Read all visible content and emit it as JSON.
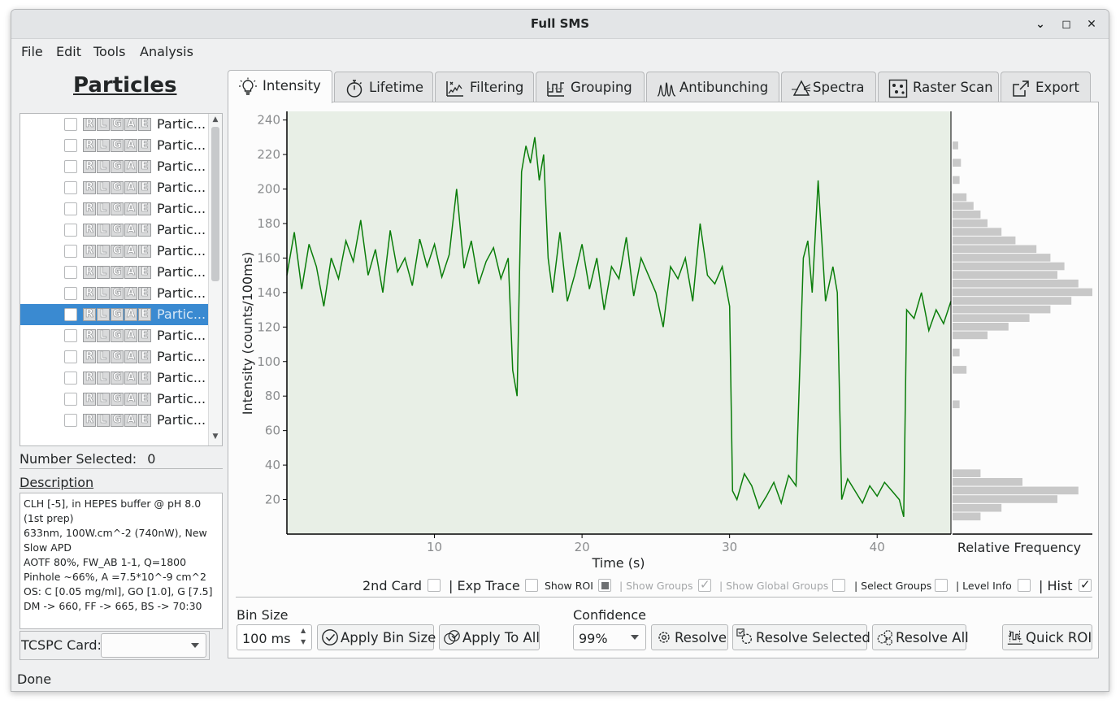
{
  "window": {
    "title": "Full SMS",
    "minimize_icon": "minimize-icon",
    "maximize_icon": "maximize-icon",
    "close_icon": "close-icon"
  },
  "menu": [
    "File",
    "Edit",
    "Tools",
    "Analysis"
  ],
  "left": {
    "title": "Particles",
    "tag_letters": [
      "R",
      "L",
      "G",
      "A",
      "E"
    ],
    "particle_label": "Partic...",
    "particle_count_visible": 15,
    "selected_index": 9,
    "number_selected_label": "Number Selected:",
    "number_selected_value": "0",
    "description_label": "Description",
    "description_lines": [
      "CLH [-5], in HEPES buffer @ pH 8.0 (1st prep)",
      "633nm, 100W.cm^-2 (740nW), New Slow APD",
      "AOTF 80%, FW_AB 1-1, Q=1800",
      "Pinhole ~66%, A =7.5*10^-9 cm^2",
      "OS: C [0.05 mg/ml], GO [1.0], G [7.5]",
      "DM -> 660, FF -> 665, BS -> 70:30"
    ],
    "tcspc_label": "TCSPC Card:",
    "tcspc_value": ""
  },
  "tabs": [
    {
      "label": "Intensity",
      "icon": "lightbulb-icon",
      "active": true
    },
    {
      "label": "Lifetime",
      "icon": "stopwatch-icon"
    },
    {
      "label": "Filtering",
      "icon": "filter-icon"
    },
    {
      "label": "Grouping",
      "icon": "grouping-icon"
    },
    {
      "label": "Antibunching",
      "icon": "antibunching-icon"
    },
    {
      "label": "Spectra",
      "icon": "prism-icon"
    },
    {
      "label": "Raster Scan",
      "icon": "raster-scan-icon"
    },
    {
      "label": "Export",
      "icon": "export-icon"
    }
  ],
  "chart_data": {
    "type": "line",
    "xlabel": "Time (s)",
    "ylabel": "Intensity (counts/100ms)",
    "hist_label": "Relative Frequency",
    "xlim": [
      0,
      45
    ],
    "ylim": [
      0,
      245
    ],
    "xticks": [
      10,
      20,
      30,
      40
    ],
    "yticks": [
      20,
      40,
      60,
      80,
      100,
      120,
      140,
      160,
      180,
      200,
      220,
      240
    ],
    "line_color": "#0a7d0a",
    "plot_bg": "#e8efe6",
    "hist_color": "#c8c8c8",
    "series": [
      {
        "x": [
          0.0,
          0.5,
          1.0,
          1.5,
          2.0,
          2.5,
          3.0,
          3.5,
          4.0,
          4.5,
          5.0,
          5.5,
          6.0,
          6.5,
          7.0,
          7.5,
          8.0,
          8.5,
          9.0,
          9.5,
          10.0,
          10.5,
          11.0,
          11.5,
          12.0,
          12.5,
          13.0,
          13.5,
          14.0,
          14.5,
          15.0,
          15.3,
          15.6,
          15.9,
          16.2,
          16.5,
          16.8,
          17.1,
          17.4,
          17.7,
          18.0,
          18.5,
          19.0,
          19.5,
          20.0,
          20.5,
          21.0,
          21.5,
          22.0,
          22.5,
          23.0,
          23.5,
          24.0,
          24.5,
          25.0,
          25.5,
          26.0,
          26.5,
          27.0,
          27.5,
          28.0,
          28.5,
          29.0,
          29.5,
          30.0,
          30.2,
          30.5,
          31.0,
          31.5,
          32.0,
          32.5,
          33.0,
          33.5,
          34.0,
          34.5,
          35.0,
          35.3,
          35.6,
          36.0,
          36.5,
          37.0,
          37.3,
          37.6,
          38.0,
          38.5,
          39.0,
          39.5,
          40.0,
          40.5,
          41.0,
          41.5,
          41.8,
          42.0,
          42.5,
          43.0,
          43.5,
          44.0,
          44.5,
          45.0
        ],
        "y": [
          150,
          175,
          142,
          168,
          155,
          132,
          160,
          148,
          170,
          158,
          182,
          150,
          165,
          140,
          176,
          152,
          160,
          144,
          171,
          155,
          168,
          149,
          162,
          200,
          154,
          170,
          145,
          158,
          166,
          148,
          160,
          95,
          80,
          210,
          225,
          215,
          230,
          205,
          220,
          160,
          140,
          175,
          135,
          150,
          168,
          142,
          160,
          130,
          155,
          148,
          172,
          138,
          160,
          150,
          140,
          120,
          155,
          148,
          160,
          135,
          180,
          150,
          145,
          155,
          132,
          25,
          20,
          35,
          28,
          15,
          22,
          30,
          18,
          34,
          28,
          160,
          170,
          140,
          205,
          135,
          155,
          140,
          20,
          32,
          25,
          18,
          28,
          22,
          30,
          25,
          20,
          10,
          130,
          125,
          140,
          118,
          130,
          122,
          135
        ]
      }
    ],
    "histogram": [
      {
        "bin": 10,
        "freq": 0.2
      },
      {
        "bin": 15,
        "freq": 0.35
      },
      {
        "bin": 20,
        "freq": 0.75
      },
      {
        "bin": 25,
        "freq": 0.9
      },
      {
        "bin": 30,
        "freq": 0.5
      },
      {
        "bin": 35,
        "freq": 0.2
      },
      {
        "bin": 75,
        "freq": 0.05
      },
      {
        "bin": 95,
        "freq": 0.1
      },
      {
        "bin": 105,
        "freq": 0.05
      },
      {
        "bin": 115,
        "freq": 0.25
      },
      {
        "bin": 120,
        "freq": 0.4
      },
      {
        "bin": 125,
        "freq": 0.55
      },
      {
        "bin": 130,
        "freq": 0.7
      },
      {
        "bin": 135,
        "freq": 0.85
      },
      {
        "bin": 140,
        "freq": 1.0
      },
      {
        "bin": 145,
        "freq": 0.9
      },
      {
        "bin": 150,
        "freq": 0.75
      },
      {
        "bin": 155,
        "freq": 0.8
      },
      {
        "bin": 160,
        "freq": 0.7
      },
      {
        "bin": 165,
        "freq": 0.6
      },
      {
        "bin": 170,
        "freq": 0.45
      },
      {
        "bin": 175,
        "freq": 0.35
      },
      {
        "bin": 180,
        "freq": 0.25
      },
      {
        "bin": 185,
        "freq": 0.2
      },
      {
        "bin": 190,
        "freq": 0.15
      },
      {
        "bin": 195,
        "freq": 0.1
      },
      {
        "bin": 205,
        "freq": 0.05
      },
      {
        "bin": 215,
        "freq": 0.06
      },
      {
        "bin": 225,
        "freq": 0.04
      }
    ]
  },
  "options": {
    "second_card": "2nd Card",
    "exp_trace": "| Exp Trace",
    "show_roi": "Show ROI",
    "show_groups": "| Show Groups",
    "show_global_groups": "| Show Global Groups",
    "select_groups": "| Select Groups",
    "level_info": "| Level Info",
    "hist": "| Hist"
  },
  "controls": {
    "bin_size_label": "Bin Size",
    "bin_size_value": "100 ms",
    "apply_bin_size": "Apply Bin Size",
    "apply_to_all": "Apply To All",
    "confidence_label": "Confidence",
    "confidence_value": "99%",
    "resolve": "Resolve",
    "resolve_selected": "Resolve Selected",
    "resolve_all": "Resolve All",
    "quick_roi": "Quick ROI"
  },
  "status": "Done"
}
